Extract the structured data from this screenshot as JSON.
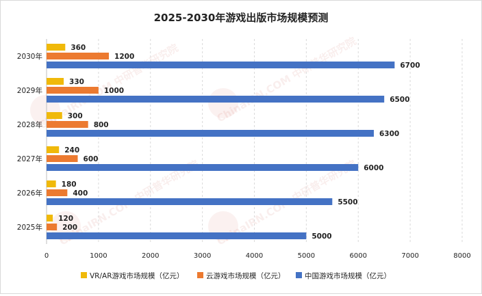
{
  "chart_data": {
    "type": "bar",
    "orientation": "horizontal",
    "title": "2025-2030年游戏出版市场规模预测",
    "categories": [
      "2030年",
      "2029年",
      "2028年",
      "2027年",
      "2026年",
      "2025年"
    ],
    "series": [
      {
        "name": "VR/AR游戏市场规模（亿元）",
        "color": "#f0b90a",
        "values": [
          360,
          330,
          300,
          240,
          180,
          120
        ]
      },
      {
        "name": "云游戏市场规模（亿元）",
        "color": "#ec7a30",
        "values": [
          1200,
          1000,
          800,
          600,
          400,
          200
        ]
      },
      {
        "name": "中国游戏市场规模（亿元）",
        "color": "#4472c4",
        "values": [
          6700,
          6500,
          6300,
          6000,
          5500,
          5000
        ]
      }
    ],
    "xlim": [
      0,
      8000
    ],
    "xticks": [
      0,
      1000,
      2000,
      3000,
      4000,
      5000,
      6000,
      7000,
      8000
    ],
    "grid": "vertical",
    "legend_position": "bottom"
  },
  "watermark": "ChinaIRN.COM 中研普华研究院"
}
